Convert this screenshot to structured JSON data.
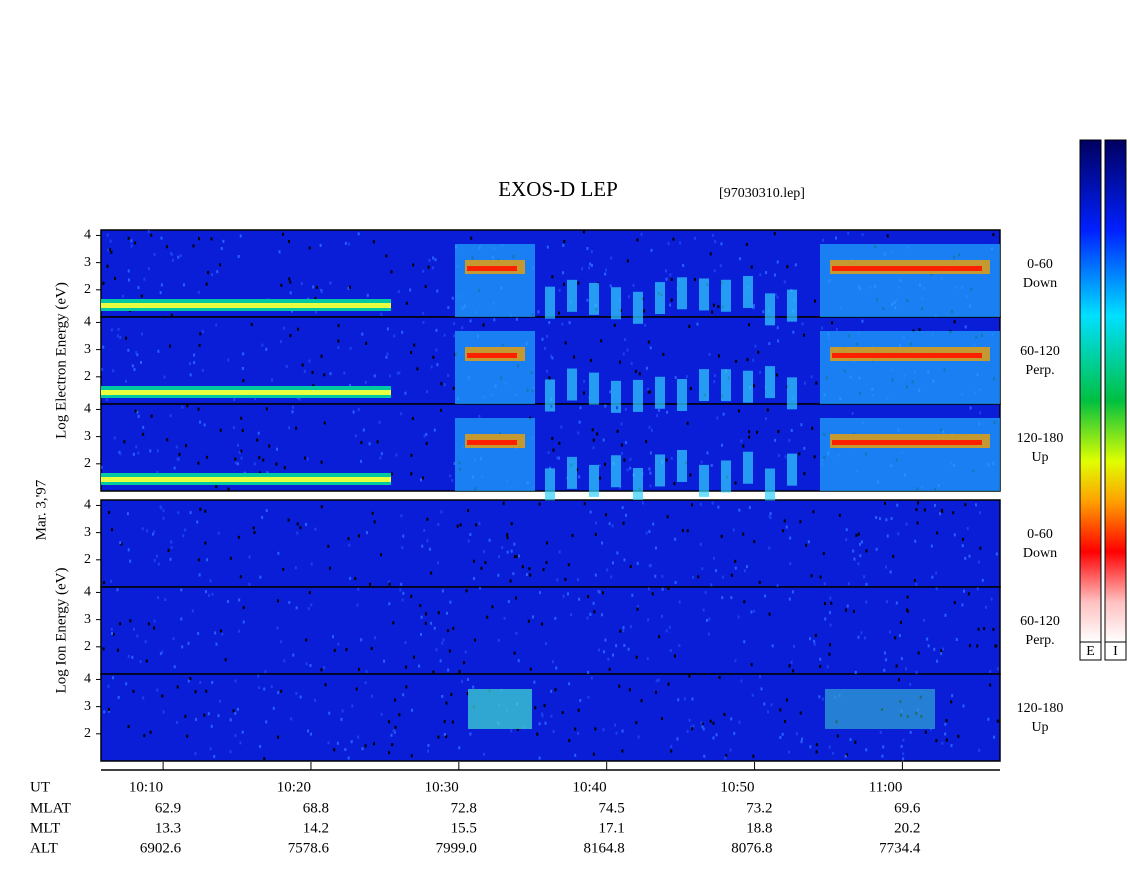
{
  "title": "EXOS-D LEP",
  "file": "[97030310.lep]",
  "date": "Mar. 3,'97",
  "groups": [
    {
      "label": "Log Electron Energy (eV)",
      "panels": [
        {
          "angle": "0-60",
          "direction": "Down"
        },
        {
          "angle": "60-120",
          "direction": "Perp."
        },
        {
          "angle": "120-180",
          "direction": "Up"
        }
      ]
    },
    {
      "label": "Log Ion Energy (eV)",
      "panels": [
        {
          "angle": "0-60",
          "direction": "Down"
        },
        {
          "angle": "60-120",
          "direction": "Perp."
        },
        {
          "angle": "120-180",
          "direction": "Up"
        }
      ]
    }
  ],
  "energy_axis": {
    "ylim": [
      1,
      4.2
    ],
    "yticks": [
      2,
      3,
      4
    ]
  },
  "time_axis": {
    "xlim": [
      605.8,
      666.6
    ],
    "xticks": [
      {
        "value": 610,
        "label": "10:10"
      },
      {
        "value": 620,
        "label": "10:20"
      },
      {
        "value": 630,
        "label": "10:30"
      },
      {
        "value": 640,
        "label": "10:40"
      },
      {
        "value": 650,
        "label": "10:50"
      },
      {
        "value": 660,
        "label": "11:00"
      }
    ]
  },
  "ut_label": "UT",
  "ephemeris": [
    {
      "label": "MLAT",
      "values": [
        "62.9",
        "68.8",
        "72.8",
        "74.5",
        "73.2",
        "69.6"
      ]
    },
    {
      "label": "MLT",
      "values": [
        "13.3",
        "14.2",
        "15.5",
        "17.1",
        "18.8",
        "20.2"
      ]
    },
    {
      "label": "ALT",
      "values": [
        "6902.6",
        "7578.6",
        "7999.0",
        "8164.8",
        "8076.8",
        "7734.4"
      ]
    }
  ],
  "colorbars": [
    "E",
    "I"
  ]
}
